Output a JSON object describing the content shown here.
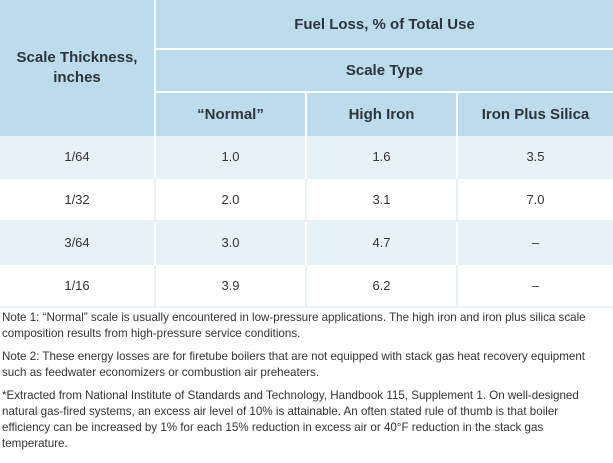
{
  "table": {
    "header_left": "Scale Thickness, inches",
    "header_top": "Fuel Loss, % of Total Use",
    "header_mid": "Scale Type",
    "columns": [
      "“Normal”",
      "High Iron",
      "Iron Plus Silica"
    ],
    "rows": [
      [
        "1/64",
        "1.0",
        "1.6",
        "3.5"
      ],
      [
        "1/32",
        "2.0",
        "3.1",
        "7.0"
      ],
      [
        "3/64",
        "3.0",
        "4.7",
        "–"
      ],
      [
        "1/16",
        "3.9",
        "6.2",
        "–"
      ]
    ]
  },
  "notes": [
    "Note 1: “Normal” scale is usually encountered in low-pressure applications. The high iron and iron plus silica scale composition results from high-pressure service conditions.",
    "Note 2: These energy losses are for firetube boilers that are not equipped with stack gas heat recovery equipment such as feedwater economizers or combustion air preheaters.",
    "*Extracted from National Institute of Standards and Technology, Handbook 115, Supplement 1. On well-designed natural gas-fired systems, an excess air level of 10% is attainable. An often stated rule of thumb is that boiler efficiency can be increased by 1% for each 15% reduction in excess air or 40°F reduction in the stack gas temperature."
  ],
  "colors": {
    "header_bg": "#bcdcec",
    "row_shaded_bg": "#e6f1f8"
  }
}
